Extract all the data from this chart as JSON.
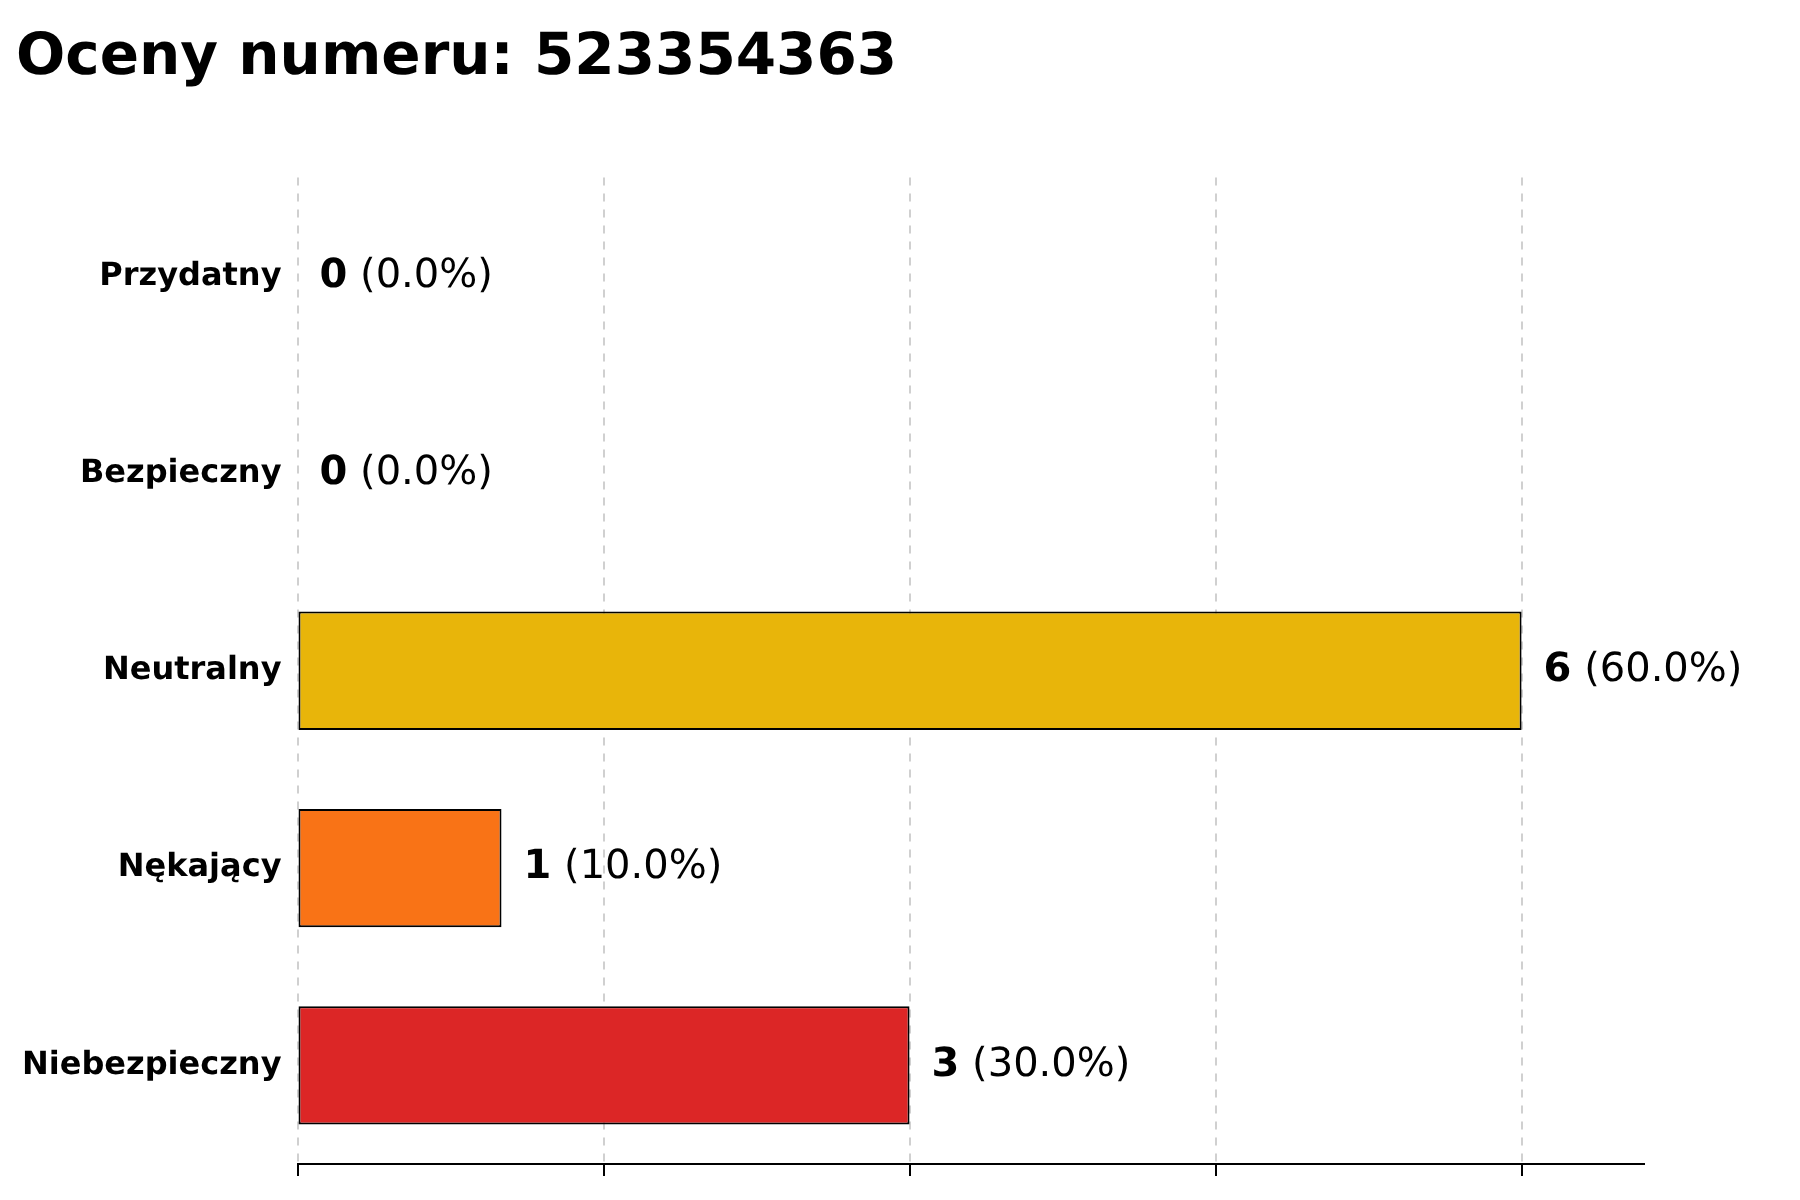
{
  "chart_data": {
    "type": "bar",
    "orientation": "horizontal",
    "title": "Oceny numeru: 523354363",
    "categories": [
      "Przydatny",
      "Bezpieczny",
      "Neutralny",
      "Nękający",
      "Niebezpieczny"
    ],
    "values": [
      0,
      0,
      6,
      1,
      3
    ],
    "colors": [
      "#2ca02c",
      "#1f77b4",
      "#e8b50a",
      "#f97316",
      "#dc2626"
    ],
    "value_labels": [
      "0 (0.0%)",
      "0 (0.0%)",
      "6 (60.0%)",
      "1 (10.0%)",
      "3 (30.0%)"
    ],
    "xlim": [
      0,
      6.6
    ],
    "xticks": [
      {
        "value": 0,
        "label": null
      },
      {
        "value": 1.5,
        "label": null
      },
      {
        "value": 3,
        "label": null
      },
      {
        "value": 4.5,
        "label": null
      },
      {
        "value": 6,
        "label": null
      }
    ],
    "tick_labels": "y",
    "grid": "x",
    "legend": false
  }
}
